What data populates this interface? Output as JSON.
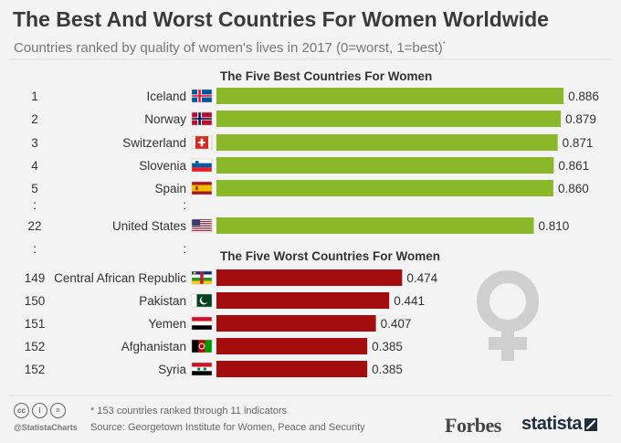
{
  "header": {
    "title": "The Best And Worst Countries For Women Worldwide",
    "subtitle": "Countries ranked by quality of women's lives in 2017 (0=worst, 1=best)",
    "subtitle_mark": "*"
  },
  "chart_data": {
    "type": "bar",
    "orientation": "horizontal",
    "xlim": [
      0,
      1
    ],
    "groups": [
      {
        "heading": "The Five Best Countries For Women",
        "color": "#8ab82a",
        "rows": [
          {
            "rank": "1",
            "country": "Iceland",
            "value": 0.886,
            "label": "0.886",
            "flag": "iceland"
          },
          {
            "rank": "2",
            "country": "Norway",
            "value": 0.879,
            "label": "0.879",
            "flag": "norway"
          },
          {
            "rank": "3",
            "country": "Switzerland",
            "value": 0.871,
            "label": "0.871",
            "flag": "switzerland"
          },
          {
            "rank": "4",
            "country": "Slovenia",
            "value": 0.861,
            "label": "0.861",
            "flag": "slovenia"
          },
          {
            "rank": "5",
            "country": "Spain",
            "value": 0.86,
            "label": "0.860",
            "flag": "spain"
          },
          {
            "rank": "22",
            "country": "United States",
            "value": 0.81,
            "label": "0.810",
            "flag": "usa"
          }
        ]
      },
      {
        "heading": "The Five Worst Countries For Women",
        "color": "#a30d0d",
        "rows": [
          {
            "rank": "149",
            "country": "Central African Republic",
            "value": 0.474,
            "label": "0.474",
            "flag": "car"
          },
          {
            "rank": "150",
            "country": "Pakistan",
            "value": 0.441,
            "label": "0.441",
            "flag": "pakistan"
          },
          {
            "rank": "151",
            "country": "Yemen",
            "value": 0.407,
            "label": "0.407",
            "flag": "yemen"
          },
          {
            "rank": "152",
            "country": "Afghanistan",
            "value": 0.385,
            "label": "0.385",
            "flag": "afghanistan"
          },
          {
            "rank": "152",
            "country": "Syria",
            "value": 0.385,
            "label": "0.385",
            "flag": "syria"
          }
        ]
      }
    ],
    "ellipsis": ":"
  },
  "footer": {
    "note": "* 153 countries ranked through 11 indicators",
    "source": "Source: Georgetown Institute for Women, Peace and Security",
    "handle": "@StatistaCharts",
    "license_icons": [
      "cc",
      "i",
      "="
    ],
    "brand_forbes": "Forbes",
    "brand_statista": "statista"
  },
  "decor": {
    "symbol": "venus-symbol-icon",
    "symbol_color": "#cfcfcf"
  }
}
